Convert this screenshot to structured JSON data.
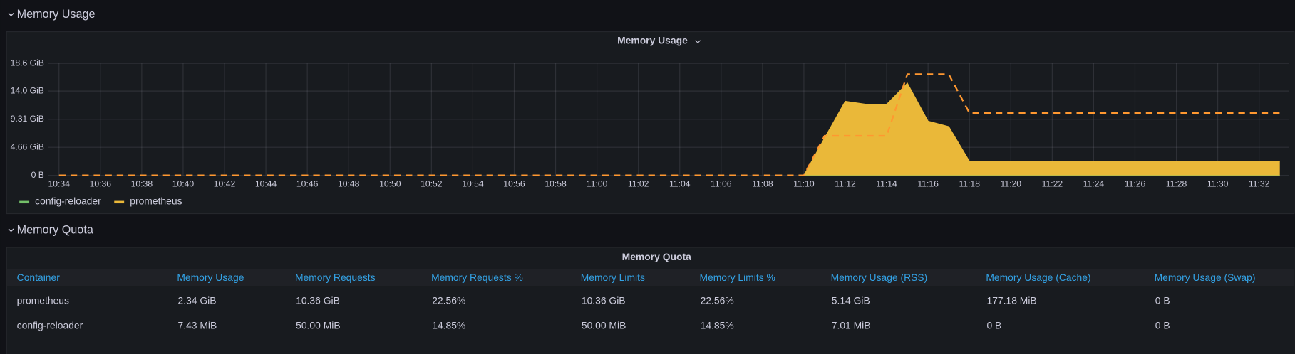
{
  "sections": [
    {
      "title": "Memory Usage"
    },
    {
      "title": "Memory Quota"
    }
  ],
  "chart_data": {
    "type": "line",
    "title": "Memory Usage",
    "x": [
      "10:34",
      "11:10",
      "11:11",
      "11:12",
      "11:13",
      "11:14",
      "11:15",
      "11:16",
      "11:17",
      "11:18",
      "11:33"
    ],
    "series": [
      {
        "name": "config-reloader",
        "color": "#73BF69",
        "values": [
          null,
          0.00726,
          0.00726,
          0.00726,
          0.00726,
          0.00726,
          0.00726,
          0.00726,
          0.00726,
          0.00726,
          0.00726
        ]
      },
      {
        "name": "prometheus",
        "color": "#EAB839",
        "fill": true,
        "values": [
          null,
          0,
          6.2,
          12.3,
          11.8,
          11.8,
          15.3,
          9.0,
          8.1,
          2.34,
          2.34
        ]
      },
      {
        "color": "#FF9830",
        "dash": true,
        "values": [
          0,
          0,
          6.57,
          6.57,
          6.57,
          6.57,
          16.8,
          16.8,
          16.8,
          10.36,
          10.36
        ]
      }
    ],
    "ylim": [
      0,
      18.6
    ],
    "yticks": [
      {
        "value": 0,
        "label": "0 B"
      },
      {
        "value": 4.66,
        "label": "4.66 GiB"
      },
      {
        "value": 9.31,
        "label": "9.31 GiB"
      },
      {
        "value": 14.0,
        "label": "14.0 GiB"
      },
      {
        "value": 18.6,
        "label": "18.6 GiB"
      }
    ],
    "xticks": [
      "10:34",
      "10:36",
      "10:38",
      "10:40",
      "10:42",
      "10:44",
      "10:46",
      "10:48",
      "10:50",
      "10:52",
      "10:54",
      "10:56",
      "10:58",
      "11:00",
      "11:02",
      "11:04",
      "11:06",
      "11:08",
      "11:10",
      "11:12",
      "11:14",
      "11:16",
      "11:18",
      "11:20",
      "11:22",
      "11:24",
      "11:26",
      "11:28",
      "11:30",
      "11:32"
    ],
    "grid": true
  },
  "table": {
    "title": "Memory Quota",
    "columns": [
      "Container",
      "Memory Usage",
      "Memory Requests",
      "Memory Requests %",
      "Memory Limits",
      "Memory Limits %",
      "Memory Usage (RSS)",
      "Memory Usage (Cache)",
      "Memory Usage (Swap)"
    ],
    "rows": [
      [
        "prometheus",
        "2.34 GiB",
        "10.36 GiB",
        "22.56%",
        "10.36 GiB",
        "22.56%",
        "5.14 GiB",
        "177.18 MiB",
        "0 B"
      ],
      [
        "config-reloader",
        "7.43 MiB",
        "50.00 MiB",
        "14.85%",
        "50.00 MiB",
        "14.85%",
        "7.01 MiB",
        "0 B",
        "0 B"
      ]
    ]
  }
}
